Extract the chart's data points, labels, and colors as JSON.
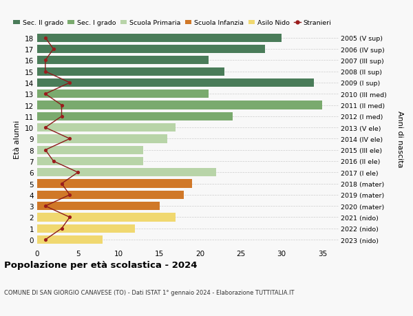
{
  "ages": [
    18,
    17,
    16,
    15,
    14,
    13,
    12,
    11,
    10,
    9,
    8,
    7,
    6,
    5,
    4,
    3,
    2,
    1,
    0
  ],
  "right_labels": [
    "2005 (V sup)",
    "2006 (IV sup)",
    "2007 (III sup)",
    "2008 (II sup)",
    "2009 (I sup)",
    "2010 (III med)",
    "2011 (II med)",
    "2012 (I med)",
    "2013 (V ele)",
    "2014 (IV ele)",
    "2015 (III ele)",
    "2016 (II ele)",
    "2017 (I ele)",
    "2018 (mater)",
    "2019 (mater)",
    "2020 (mater)",
    "2021 (nido)",
    "2022 (nido)",
    "2023 (nido)"
  ],
  "bar_values": [
    30,
    28,
    21,
    23,
    34,
    21,
    35,
    24,
    17,
    16,
    13,
    13,
    22,
    19,
    18,
    15,
    17,
    12,
    8
  ],
  "bar_colors": [
    "#4a7c59",
    "#4a7c59",
    "#4a7c59",
    "#4a7c59",
    "#4a7c59",
    "#7aaa6e",
    "#7aaa6e",
    "#7aaa6e",
    "#b8d4a8",
    "#b8d4a8",
    "#b8d4a8",
    "#b8d4a8",
    "#b8d4a8",
    "#d07828",
    "#d07828",
    "#d07828",
    "#f0d870",
    "#f0d870",
    "#f0d870"
  ],
  "stranieri_values": [
    1,
    2,
    1,
    1,
    4,
    1,
    3,
    3,
    1,
    4,
    1,
    2,
    5,
    3,
    4,
    1,
    4,
    3,
    1
  ],
  "xlim": [
    0,
    37
  ],
  "ylim": [
    -0.6,
    18.6
  ],
  "ylabel": "Età alunni",
  "right_ylabel": "Anni di nascita",
  "title": "Popolazione per età scolastica - 2024",
  "subtitle": "COMUNE DI SAN GIORGIO CANAVESE (TO) - Dati ISTAT 1° gennaio 2024 - Elaborazione TUTTITALIA.IT",
  "legend_labels": [
    "Sec. II grado",
    "Sec. I grado",
    "Scuola Primaria",
    "Scuola Infanzia",
    "Asilo Nido",
    "Stranieri"
  ],
  "legend_colors": [
    "#4a7c59",
    "#7aaa6e",
    "#b8d4a8",
    "#d07828",
    "#f0d870",
    "#9b1c1c"
  ],
  "bar_height": 0.75,
  "background_color": "#f8f8f8",
  "grid_color": "#cccccc",
  "stranieri_line_color": "#8b1a1a",
  "stranieri_marker_color": "#9b1c1c",
  "xticks": [
    0,
    5,
    10,
    15,
    20,
    25,
    30,
    35
  ]
}
